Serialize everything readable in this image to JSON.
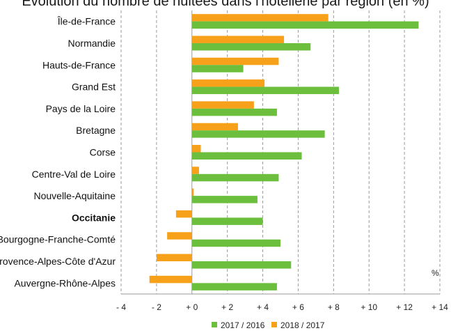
{
  "chart_data": {
    "type": "bar",
    "orientation": "horizontal",
    "title": "Évolution du nombre de nuitées dans l'hôtellerie par région (en %)",
    "unit": "%",
    "categories": [
      "Île-de-France",
      "Normandie",
      "Hauts-de-France",
      "Grand Est",
      "Pays de la Loire",
      "Bretagne",
      "Corse",
      "Centre-Val de Loire",
      "Nouvelle-Aquitaine",
      "Occitanie",
      "Bourgogne-Franche-Comté",
      "Provence-Alpes-Côte d'Azur",
      "Auvergne-Rhône-Alpes"
    ],
    "highlight_category": "Occitanie",
    "series": [
      {
        "name": "2017 / 2016",
        "color": "#6cbf3c",
        "values": [
          12.8,
          6.7,
          2.9,
          8.3,
          4.8,
          7.5,
          6.2,
          4.9,
          3.7,
          4.0,
          5.0,
          5.6,
          4.8
        ]
      },
      {
        "name": "2018 / 2017",
        "color": "#f7a11a",
        "values": [
          7.7,
          5.2,
          4.9,
          4.1,
          3.5,
          2.6,
          0.5,
          0.4,
          0.1,
          -0.9,
          -1.4,
          -2.0,
          -2.4
        ]
      }
    ],
    "xlim": [
      -4,
      14
    ],
    "xticks": [
      -4,
      -2,
      0,
      2,
      4,
      6,
      8,
      10,
      12,
      14
    ],
    "xtick_labels": [
      "- 4",
      "- 2",
      "+ 0",
      "+ 2",
      "+ 4",
      "+ 6",
      "+ 8",
      "+ 10",
      "+ 12",
      "+ 14"
    ],
    "grid": "vertical dashed",
    "legend_position": "bottom"
  }
}
